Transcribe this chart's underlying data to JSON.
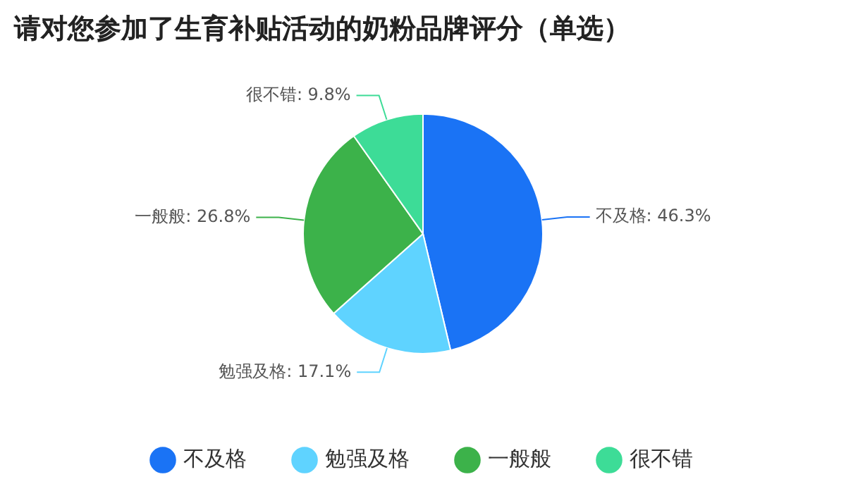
{
  "chart_data": {
    "type": "pie",
    "title": "请对您参加了生育补贴活动的奶粉品牌评分（单选）",
    "categories": [
      "不及格",
      "勉强及格",
      "一般般",
      "很不错"
    ],
    "values": [
      46.3,
      17.1,
      26.8,
      9.8
    ],
    "value_labels": [
      "不及格: 46.3%",
      "勉强及格: 17.1%",
      "一般般: 26.8%",
      "很不错: 9.8%"
    ],
    "colors": [
      "#1a73f5",
      "#5fd3ff",
      "#3cb24a",
      "#3ddc97"
    ],
    "legend": "bottom"
  }
}
